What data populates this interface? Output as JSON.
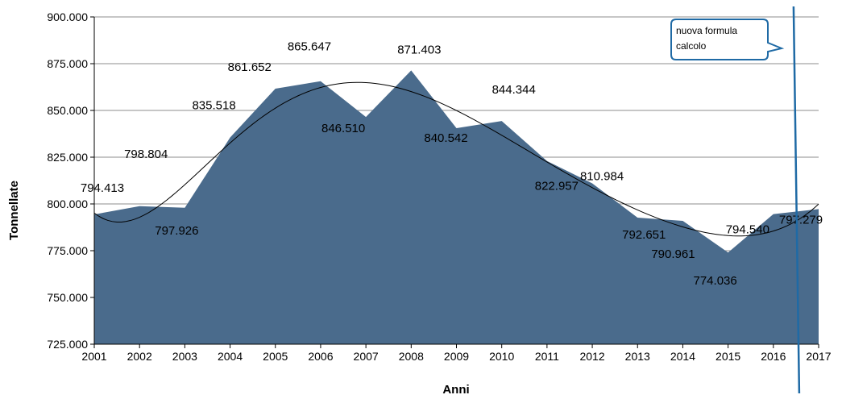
{
  "chart_data": {
    "type": "area",
    "title": "",
    "xlabel": "Anni",
    "ylabel": "Tonnellate",
    "ylim": [
      725000,
      900000
    ],
    "ytick_values": [
      725000,
      750000,
      775000,
      800000,
      825000,
      850000,
      875000,
      900000
    ],
    "ytick_labels": [
      "725.000",
      "750.000",
      "775.000",
      "800.000",
      "825.000",
      "850.000",
      "875.000",
      "900.000"
    ],
    "x": [
      "2001",
      "2002",
      "2003",
      "2004",
      "2005",
      "2006",
      "2007",
      "2008",
      "2009",
      "2010",
      "2011",
      "2012",
      "2013",
      "2014",
      "2015",
      "2016",
      "2017"
    ],
    "series": [
      {
        "values": [
          794413,
          798804,
          797926,
          835518,
          861652,
          865647,
          846510,
          871403,
          840542,
          844344,
          822957,
          810984,
          792651,
          790961,
          774036,
          794540,
          797279
        ],
        "labels": [
          "794.413",
          "798.804",
          "797.926",
          "835.518",
          "861.652",
          "865.647",
          "846.510",
          "871.403",
          "840.542",
          "844.344",
          "822.957",
          "810.984",
          "792.651",
          "790.961",
          "774.036",
          "794.540",
          "797.279"
        ],
        "color": "#4a6b8c"
      }
    ],
    "trendline": {
      "type": "polynomial",
      "color": "#000000"
    },
    "grid": true,
    "annotations": [
      {
        "text_lines": [
          "nuova formula",
          "calcolo"
        ],
        "color": "#1f6aa5",
        "x_value": "2016.5"
      }
    ]
  }
}
